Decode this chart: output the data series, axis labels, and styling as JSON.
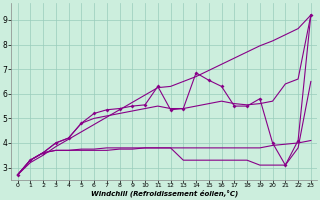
{
  "xlabel": "Windchill (Refroidissement éolien,°C)",
  "bg_color": "#cceedd",
  "line_color": "#880088",
  "grid_color": "#99ccbb",
  "xlim": [
    -0.5,
    23.5
  ],
  "ylim": [
    2.5,
    9.7
  ],
  "xticks": [
    0,
    1,
    2,
    3,
    4,
    5,
    6,
    7,
    8,
    9,
    10,
    11,
    12,
    13,
    14,
    15,
    16,
    17,
    18,
    19,
    20,
    21,
    22,
    23
  ],
  "yticks": [
    3,
    4,
    5,
    6,
    7,
    8,
    9
  ],
  "line1_jagged": [
    2.7,
    3.3,
    3.6,
    4.0,
    4.2,
    4.8,
    5.2,
    5.35,
    5.4,
    5.5,
    5.55,
    6.3,
    5.35,
    5.4,
    6.85,
    6.55,
    6.3,
    5.5,
    5.5,
    5.8,
    4.0,
    3.1,
    4.1,
    9.2
  ],
  "line2_rising": [
    2.7,
    3.2,
    3.5,
    3.85,
    4.15,
    4.45,
    4.75,
    5.05,
    5.35,
    5.65,
    5.95,
    6.25,
    6.3,
    6.5,
    6.7,
    6.95,
    7.2,
    7.45,
    7.7,
    7.95,
    8.15,
    8.4,
    8.65,
    9.2
  ],
  "line3_mid": [
    2.7,
    3.3,
    3.6,
    4.0,
    4.2,
    4.8,
    5.0,
    5.1,
    5.2,
    5.3,
    5.4,
    5.5,
    5.4,
    5.4,
    5.5,
    5.6,
    5.7,
    5.6,
    5.55,
    5.6,
    5.7,
    6.4,
    6.6,
    9.2
  ],
  "line4_flat1": [
    2.7,
    3.3,
    3.6,
    3.7,
    3.7,
    3.75,
    3.75,
    3.8,
    3.8,
    3.8,
    3.8,
    3.8,
    3.8,
    3.3,
    3.3,
    3.3,
    3.3,
    3.3,
    3.3,
    3.1,
    3.1,
    3.1,
    3.8,
    6.5
  ],
  "line5_flat2": [
    2.7,
    3.3,
    3.6,
    3.7,
    3.7,
    3.7,
    3.7,
    3.7,
    3.75,
    3.75,
    3.8,
    3.8,
    3.8,
    3.8,
    3.8,
    3.8,
    3.8,
    3.8,
    3.8,
    3.8,
    3.9,
    3.95,
    4.0,
    4.1
  ]
}
